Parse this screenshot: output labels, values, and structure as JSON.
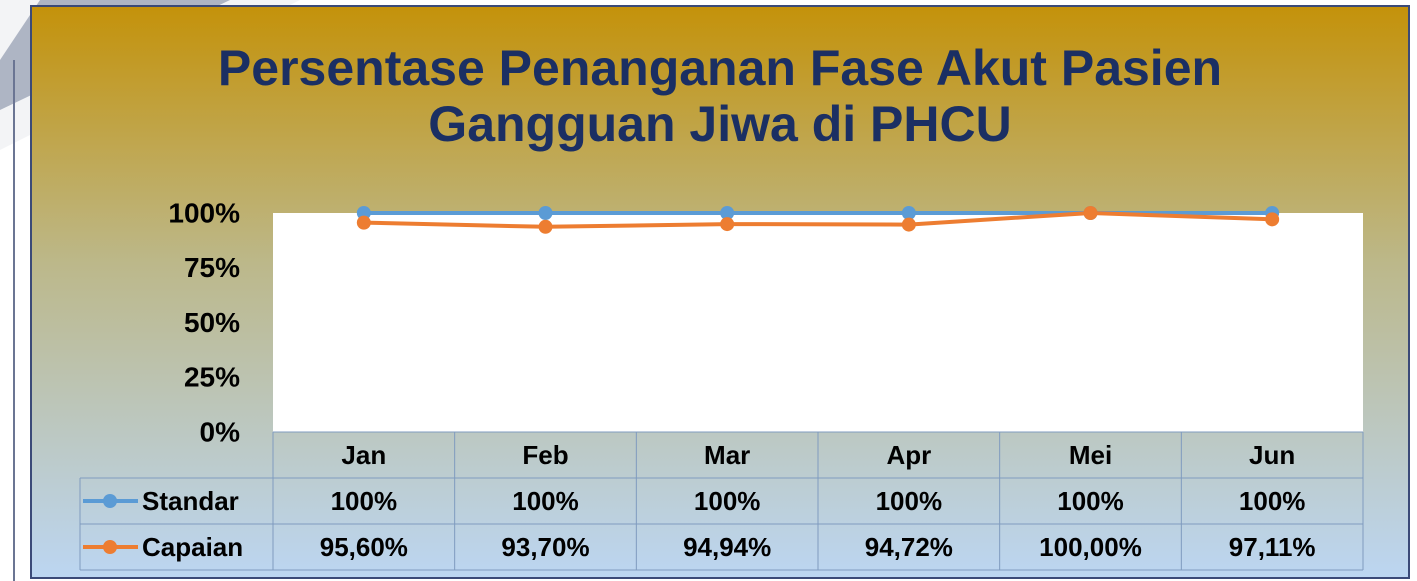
{
  "chart_data": {
    "type": "line",
    "title": "Persentase Penanganan Fase Akut Pasien Gangguan Jiwa di PHCU",
    "categories": [
      "Jan",
      "Feb",
      "Mar",
      "Apr",
      "Mei",
      "Jun"
    ],
    "series": [
      {
        "name": "Standar",
        "color": "#5b9bd5",
        "values": [
          100,
          100,
          100,
          100,
          100,
          100
        ],
        "value_labels": [
          "100%",
          "100%",
          "100%",
          "100%",
          "100%",
          "100%"
        ]
      },
      {
        "name": "Capaian",
        "color": "#ed7d31",
        "values": [
          95.6,
          93.7,
          94.94,
          94.72,
          100,
          97.11
        ],
        "value_labels": [
          "95,60%",
          "93,70%",
          "94,94%",
          "94,72%",
          "100,00%",
          "97,11%"
        ]
      }
    ],
    "ylim": [
      0,
      100
    ],
    "yticks": [
      {
        "value": 0,
        "label": "0%"
      },
      {
        "value": 25,
        "label": "25%"
      },
      {
        "value": 50,
        "label": "50%"
      },
      {
        "value": 75,
        "label": "75%"
      },
      {
        "value": 100,
        "label": "100%"
      }
    ],
    "data_table": true
  }
}
